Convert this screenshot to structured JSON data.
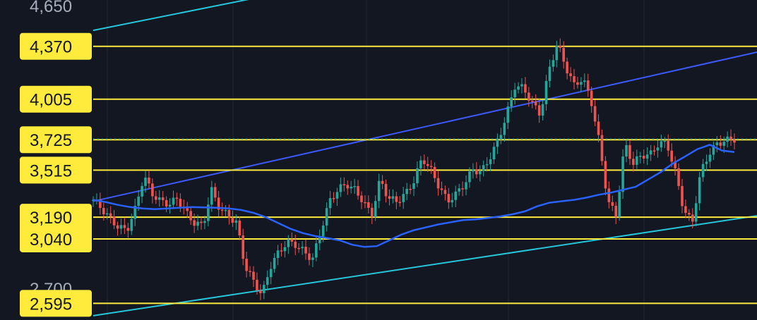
{
  "colors": {
    "background": "#131722",
    "grid": "#1e2433",
    "level_line": "#ffeb3b",
    "label_bg": "#ffeb3b",
    "label_text": "#131722",
    "axis_text": "#a6adbb",
    "up_candle": "#26a69a",
    "down_candle": "#ef5350",
    "moving_average": "#2962ff",
    "channel_upper": "#3d5afe",
    "channel_lower": "#26c6da",
    "current_price_line": "#26a69a"
  },
  "chart_data": {
    "type": "candlestick",
    "title": "",
    "xlabel": "",
    "ylabel": "",
    "ylim": [
      2480,
      4690
    ],
    "grid": true,
    "axis_tick_labels": [
      "4,650",
      "2,700"
    ],
    "levels": [
      {
        "label": "4,370",
        "value": 4370
      },
      {
        "label": "4,005",
        "value": 4005
      },
      {
        "label": "3,725",
        "value": 3725
      },
      {
        "label": "3,515",
        "value": 3515
      },
      {
        "label": "3,190",
        "value": 3190
      },
      {
        "label": "3,040",
        "value": 3040
      },
      {
        "label": "2,595",
        "value": 2595
      }
    ],
    "current_price": 3730,
    "trend_lines": [
      {
        "name": "upper-channel",
        "from": [
          0,
          3300
        ],
        "to": [
          1,
          4330
        ]
      },
      {
        "name": "lower-channel",
        "from": [
          0,
          2510
        ],
        "to": [
          1,
          3200
        ]
      },
      {
        "name": "upper-outer",
        "from": [
          0,
          4480
        ],
        "to": [
          0.24,
          4700
        ]
      }
    ],
    "moving_average": [
      3310,
      3295,
      3275,
      3260,
      3250,
      3245,
      3250,
      3255,
      3260,
      3258,
      3255,
      3250,
      3240,
      3220,
      3190,
      3150,
      3110,
      3080,
      3060,
      3045,
      3030,
      3000,
      2985,
      2990,
      3030,
      3070,
      3100,
      3120,
      3140,
      3155,
      3170,
      3175,
      3185,
      3195,
      3210,
      3230,
      3265,
      3290,
      3300,
      3310,
      3325,
      3345,
      3360,
      3380,
      3400,
      3450,
      3500,
      3560,
      3610,
      3660,
      3690,
      3650,
      3640
    ],
    "close_series": [
      3310,
      3250,
      3180,
      3120,
      3100,
      3250,
      3480,
      3350,
      3300,
      3280,
      3320,
      3220,
      3150,
      3130,
      3380,
      3250,
      3200,
      3150,
      2850,
      2750,
      2650,
      2850,
      2950,
      3020,
      3000,
      2950,
      2900,
      3100,
      3300,
      3380,
      3420,
      3380,
      3300,
      3200,
      3450,
      3320,
      3300,
      3350,
      3440,
      3600,
      3520,
      3400,
      3300,
      3350,
      3420,
      3520,
      3500,
      3600,
      3720,
      3900,
      4100,
      4080,
      3980,
      3900,
      4200,
      4390,
      4230,
      4100,
      4150,
      4000,
      3700,
      3300,
      3200,
      3700,
      3560,
      3620,
      3620,
      3700,
      3700,
      3500,
      3240,
      3150,
      3500,
      3630,
      3700,
      3720,
      3730
    ]
  }
}
